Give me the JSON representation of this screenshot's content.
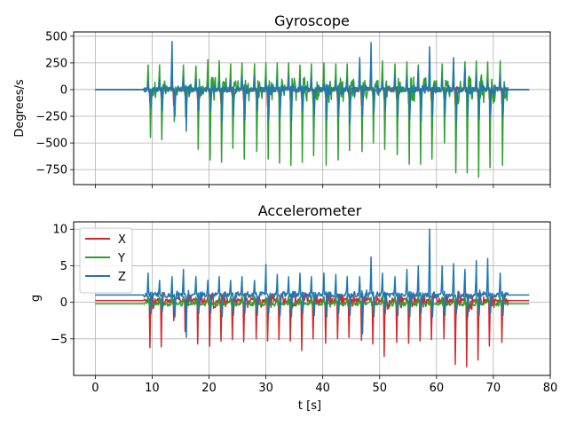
{
  "colors": {
    "x": "#d62728",
    "y": "#2ca02c",
    "z": "#1f77b4",
    "grid": "#b0b0b0"
  },
  "chart_data": [
    {
      "type": "line",
      "title": "Gyroscope",
      "xlabel": "",
      "ylabel": "Degrees/s",
      "xlim": [
        -3.8,
        80
      ],
      "ylim": [
        -890,
        540
      ],
      "xticks": [
        0,
        10,
        20,
        30,
        40,
        50,
        60,
        70,
        80
      ],
      "yticks": [
        500,
        250,
        0,
        -250,
        -500,
        -750
      ],
      "ytick_labels": [
        "500",
        "250",
        "0",
        "−250",
        "−500",
        "−750"
      ],
      "grid": true,
      "legend": null,
      "event_times": [
        9.3,
        11.3,
        13.5,
        15.5,
        17.7,
        19.8,
        21.8,
        23.8,
        25.8,
        28.0,
        30.0,
        32.0,
        34.0,
        36.0,
        38.0,
        40.2,
        42.3,
        44.3,
        46.5,
        48.5,
        50.5,
        52.7,
        54.8,
        56.8,
        58.8,
        61.0,
        63.0,
        65.0,
        67.0,
        69.0,
        71.2
      ],
      "series": [
        {
          "name": "X",
          "color_key": "x",
          "baseline": 0,
          "peaks_pos": [
            50,
            30,
            80,
            40,
            60,
            30,
            50,
            40,
            70,
            30,
            60,
            40,
            50,
            30,
            80,
            40,
            60,
            30,
            50,
            40,
            70,
            30,
            60,
            40,
            50,
            30,
            80,
            40,
            60,
            30,
            50
          ],
          "peaks_neg": [
            -120,
            -80,
            -150,
            -60,
            -100,
            -90,
            -130,
            -70,
            -110,
            -80,
            -150,
            -60,
            -100,
            -90,
            -130,
            -70,
            -110,
            -80,
            -150,
            -60,
            -100,
            -90,
            -130,
            -70,
            -110,
            -80,
            -150,
            -60,
            -100,
            -90,
            -130
          ]
        },
        {
          "name": "Y",
          "color_key": "y",
          "baseline": 0,
          "peaks_pos": [
            230,
            230,
            250,
            230,
            220,
            280,
            270,
            240,
            250,
            240,
            250,
            250,
            250,
            230,
            240,
            250,
            240,
            240,
            270,
            250,
            270,
            240,
            260,
            230,
            250,
            240,
            270,
            260,
            270,
            260,
            270
          ],
          "peaks_neg": [
            -450,
            -470,
            -300,
            -260,
            -560,
            -660,
            -680,
            -550,
            -650,
            -580,
            -650,
            -690,
            -710,
            -680,
            -620,
            -710,
            -660,
            -570,
            -580,
            -500,
            -560,
            -610,
            -700,
            -700,
            -650,
            -500,
            -780,
            -780,
            -820,
            -730,
            -710
          ]
        },
        {
          "name": "Z",
          "color_key": "z",
          "baseline": 0,
          "peaks_pos": [
            80,
            100,
            450,
            120,
            100,
            60,
            80,
            90,
            130,
            120,
            100,
            90,
            120,
            100,
            120,
            60,
            90,
            100,
            300,
            440,
            80,
            130,
            120,
            200,
            400,
            110,
            300,
            200,
            150,
            80,
            140
          ],
          "peaks_neg": [
            -170,
            -200,
            -250,
            -390,
            -200,
            -200,
            -300,
            -250,
            -280,
            -200,
            -280,
            -250,
            -300,
            -200,
            -250,
            -280,
            -250,
            -320,
            -250,
            -220,
            -200,
            -250,
            -280,
            -300,
            -250,
            -250,
            -300,
            -250,
            -280,
            -250,
            -250
          ]
        }
      ]
    },
    {
      "type": "line",
      "title": "Accelerometer",
      "xlabel": "t [s]",
      "ylabel": "g",
      "xlim": [
        -3.8,
        80
      ],
      "ylim": [
        -10,
        11
      ],
      "xticks": [
        0,
        10,
        20,
        30,
        40,
        50,
        60,
        70,
        80
      ],
      "yticks": [
        10,
        5,
        0,
        -5
      ],
      "ytick_labels": [
        "10",
        "5",
        "0",
        "−5"
      ],
      "grid": true,
      "legend": "top-left",
      "event_times": [
        9.3,
        11.3,
        13.5,
        15.5,
        17.7,
        19.8,
        21.8,
        23.8,
        25.8,
        28.0,
        30.0,
        32.0,
        34.0,
        36.0,
        38.0,
        40.2,
        42.3,
        44.3,
        46.5,
        48.5,
        50.5,
        52.7,
        54.8,
        56.8,
        58.8,
        61.0,
        63.0,
        65.0,
        67.0,
        69.0,
        71.2
      ],
      "series": [
        {
          "name": "X",
          "color_key": "x",
          "baseline": 0.25,
          "peaks_pos": [
            0.8,
            0.6,
            0.8,
            0.7,
            0.6,
            0.8,
            0.7,
            0.6,
            0.8,
            0.7,
            0.6,
            0.8,
            0.7,
            0.6,
            0.8,
            0.7,
            0.6,
            0.8,
            0.7,
            0.6,
            0.8,
            0.7,
            0.6,
            0.8,
            0.7,
            0.6,
            0.8,
            0.7,
            0.6,
            0.8,
            0.7
          ],
          "peaks_neg": [
            -6.2,
            -6.1,
            -2.5,
            -4.0,
            -5.7,
            -6.0,
            -5.3,
            -5.1,
            -5.4,
            -5.0,
            -5.3,
            -5.1,
            -5.3,
            -6.6,
            -5.0,
            -5.6,
            -5.0,
            -4.8,
            -5.2,
            -5.7,
            -7.4,
            -5.5,
            -5.6,
            -5.3,
            -5.1,
            -5.0,
            -8.5,
            -8.8,
            -7.9,
            -6.0,
            -5.5
          ]
        },
        {
          "name": "Y",
          "color_key": "y",
          "baseline": -0.2,
          "peaks_pos": [
            0.8,
            0.7,
            0.9,
            0.8,
            0.7,
            0.9,
            0.8,
            0.7,
            0.9,
            0.8,
            0.7,
            0.9,
            0.8,
            0.7,
            0.9,
            0.8,
            0.7,
            0.9,
            0.8,
            0.7,
            0.9,
            0.8,
            0.7,
            0.9,
            0.8,
            0.7,
            0.9,
            0.8,
            0.7,
            0.9,
            0.8
          ],
          "peaks_neg": [
            -1.0,
            -1.2,
            -1.0,
            -1.1,
            -1.2,
            -1.0,
            -1.1,
            -1.2,
            -1.0,
            -1.1,
            -1.2,
            -1.0,
            -1.1,
            -1.2,
            -1.0,
            -1.1,
            -1.2,
            -1.0,
            -1.1,
            -1.2,
            -1.0,
            -1.1,
            -1.2,
            -1.0,
            -1.1,
            -1.2,
            -1.0,
            -1.1,
            -1.2,
            -1.0,
            -1.1
          ]
        },
        {
          "name": "Z",
          "color_key": "z",
          "baseline": 1.0,
          "peaks_pos": [
            4.0,
            3.0,
            3.5,
            4.5,
            3.5,
            3.0,
            3.5,
            3.0,
            3.5,
            3.0,
            5.2,
            3.8,
            3.5,
            4.0,
            3.5,
            4.0,
            3.8,
            3.5,
            3.5,
            6.2,
            4.0,
            3.5,
            4.5,
            5.0,
            10.0,
            5.0,
            5.3,
            4.5,
            5.7,
            6.0,
            4.0
          ],
          "peaks_neg": [
            -1.5,
            -1.2,
            -2.0,
            -4.8,
            -1.5,
            -1.5,
            -2.0,
            -1.8,
            -1.5,
            -1.8,
            -1.5,
            -1.8,
            -2.0,
            -1.5,
            -1.8,
            -2.0,
            -1.5,
            -1.8,
            -4.3,
            -2.0,
            -1.5,
            -1.8,
            -2.0,
            -1.5,
            -2.0,
            -1.8,
            -1.5,
            -2.0,
            -1.8,
            -1.5,
            -1.8
          ]
        }
      ]
    }
  ]
}
